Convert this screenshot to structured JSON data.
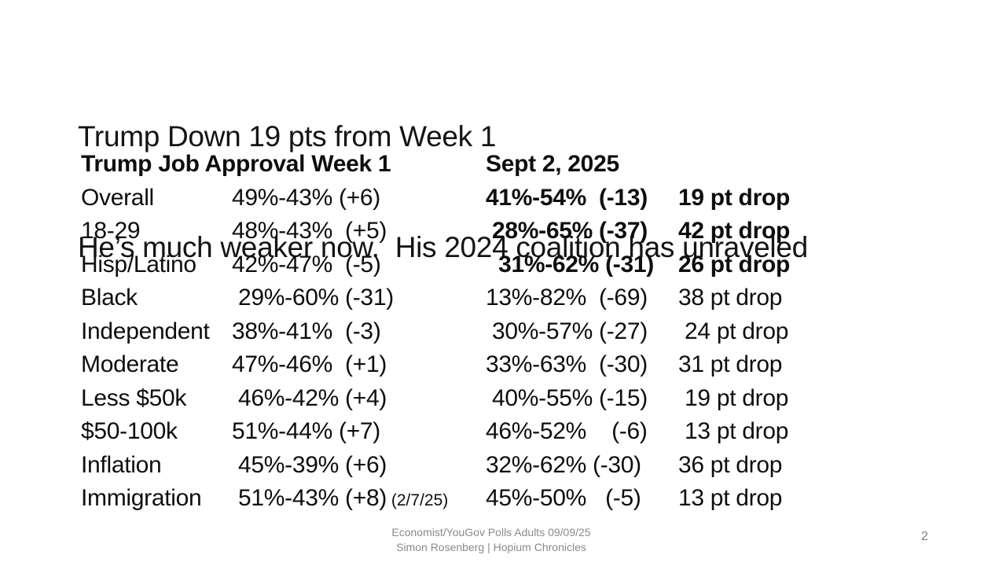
{
  "slide": {
    "title_line1": "Trump Down 19 pts from Week 1",
    "title_line2": "He’s much weaker now.  His 2024 coalition has unraveled",
    "page_number": "2"
  },
  "table": {
    "header": {
      "week1_label": "Trump Job Approval Week 1",
      "sept2_label": "Sept 2, 2025"
    },
    "rows": [
      {
        "label": "Overall",
        "week1": "49%-43% (+6)",
        "note": "",
        "sept2": "41%-54%  (-13)",
        "drop": "19 pt drop",
        "bold": true
      },
      {
        "label": "18-29",
        "week1": "48%-43%  (+5)",
        "note": "",
        "sept2": " 28%-65% (-37)",
        "drop": "42 pt drop",
        "bold": true
      },
      {
        "label": "Hisp/Latino",
        "week1": "42%-47%  (-5)",
        "note": "",
        "sept2": "  31%-62% (-31)",
        "drop": "26 pt drop",
        "bold": true
      },
      {
        "label": "Black",
        "week1": " 29%-60% (-31)",
        "note": "",
        "sept2": "13%-82%  (-69)",
        "drop": "38 pt drop",
        "bold": false
      },
      {
        "label": "Independent",
        "week1": "38%-41%  (-3)",
        "note": "",
        "sept2": " 30%-57% (-27)",
        "drop": " 24 pt drop",
        "bold": false
      },
      {
        "label": "Moderate",
        "week1": "47%-46%  (+1)",
        "note": "",
        "sept2": "33%-63%  (-30)",
        "drop": "31 pt drop",
        "bold": false
      },
      {
        "label": "Less $50k",
        "week1": " 46%-42% (+4)",
        "note": "",
        "sept2": " 40%-55% (-15)",
        "drop": " 19 pt drop",
        "bold": false
      },
      {
        "label": "$50-100k",
        "week1": "51%-44% (+7)",
        "note": "",
        "sept2": "46%-52%    (-6)",
        "drop": " 13 pt drop",
        "bold": false
      },
      {
        "label": "Inflation",
        "week1": " 45%-39% (+6)",
        "note": "",
        "sept2": "32%-62% (-30)",
        "drop": "36 pt drop",
        "bold": false
      },
      {
        "label": "Immigration",
        "week1": " 51%-43% (+8)",
        "note": "(2/7/25)",
        "sept2": "45%-50%   (-5)",
        "drop": "13 pt drop",
        "bold": false
      }
    ]
  },
  "footer": {
    "line1": "Economist/YouGov Polls Adults 09/09/25",
    "line2": "Simon Rosenberg | Hopium Chronicles"
  },
  "colors": {
    "text": "#121212",
    "muted_gray": "#8a8a8a",
    "background": "#ffffff"
  }
}
